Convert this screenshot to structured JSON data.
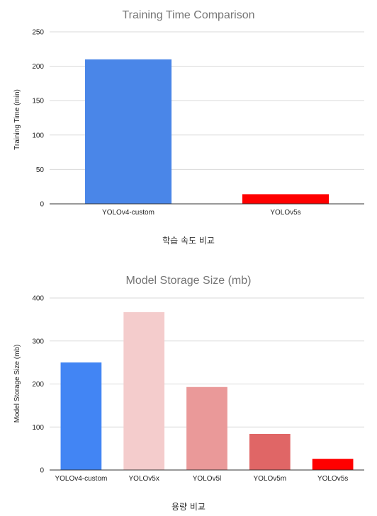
{
  "chart_data": [
    {
      "type": "bar",
      "title": "Training Time Comparison",
      "xlabel": "",
      "ylabel": "Training Time (min)",
      "categories": [
        "YOLOv4-custom",
        "YOLOv5s"
      ],
      "values": [
        210,
        14
      ],
      "colors": [
        "#4a86e8",
        "#ff0000"
      ],
      "ylim": [
        0,
        250
      ],
      "yticks": [
        0,
        50,
        100,
        150,
        200,
        250
      ],
      "grid": true,
      "legend": "none"
    },
    {
      "type": "bar",
      "title": "Model Storage Size (mb)",
      "xlabel": "",
      "ylabel": "Model Storage Size (mb)",
      "categories": [
        "YOLOv4-custom",
        "YOLOv5x",
        "YOLOv5l",
        "YOLOv5m",
        "YOLOv5s"
      ],
      "values": [
        250,
        367,
        193,
        84,
        26
      ],
      "colors": [
        "#4285f4",
        "#f4cccc",
        "#ea9999",
        "#e06666",
        "#ff0000"
      ],
      "ylim": [
        0,
        400
      ],
      "yticks": [
        0,
        100,
        200,
        300,
        400
      ],
      "grid": true,
      "legend": "none"
    }
  ],
  "captions": {
    "training": "학습 속도 비교",
    "storage": "용량 비교"
  }
}
